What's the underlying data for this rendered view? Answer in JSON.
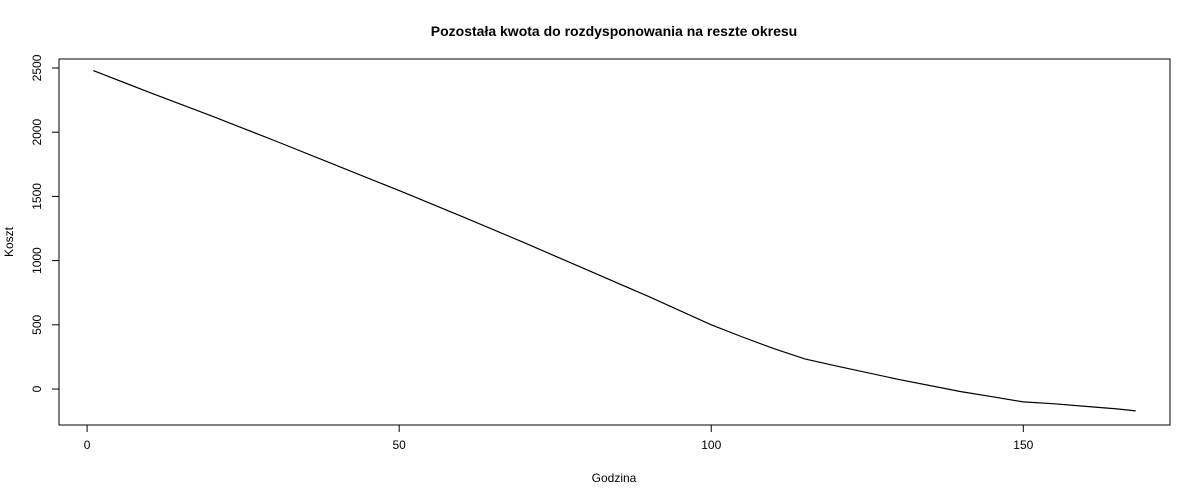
{
  "chart_data": {
    "type": "line",
    "title": "Pozostała kwota do rozdysponowania na reszte okresu",
    "xlabel": "Godzina",
    "ylabel": "Koszt",
    "xlim": [
      -4.5,
      173.5
    ],
    "ylim": [
      -280,
      2570
    ],
    "xticks": [
      0,
      50,
      100,
      150
    ],
    "yticks": [
      0,
      500,
      1000,
      1500,
      2000,
      2500
    ],
    "grid": false,
    "legend": "none",
    "series": [
      {
        "x": [
          1,
          10,
          20,
          30,
          40,
          50,
          60,
          70,
          80,
          90,
          100,
          105,
          110,
          115,
          120,
          130,
          140,
          145,
          150,
          155,
          160,
          165,
          168
        ],
        "y": [
          2480,
          2310,
          2125,
          1935,
          1740,
          1545,
          1345,
          1140,
          930,
          720,
          500,
          405,
          315,
          235,
          180,
          75,
          -20,
          -60,
          -100,
          -115,
          -135,
          -155,
          -170
        ]
      }
    ]
  }
}
